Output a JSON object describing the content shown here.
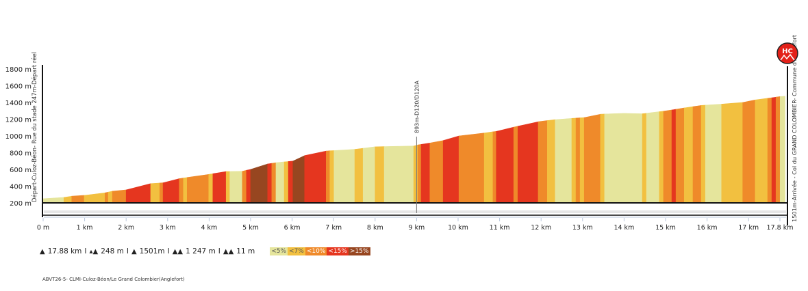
{
  "chart_data": {
    "type": "area",
    "title": "",
    "xlabel": "",
    "ylabel": "",
    "xlim": [
      0,
      17.88
    ],
    "ylim": [
      200,
      1800
    ],
    "y_ticks": [
      "200 m",
      "400 m",
      "600 m",
      "800 m",
      "1000 m",
      "1200 m",
      "1400 m",
      "1600 m",
      "1800 m"
    ],
    "x_ticks": [
      "0 m",
      "1 km",
      "2 km",
      "3 km",
      "4 km",
      "5 km",
      "6 km",
      "7 km",
      "8 km",
      "9 km",
      "10 km",
      "11 km",
      "12 km",
      "13 km",
      "14 km",
      "15 km",
      "16 km",
      "17 km",
      "17.8 km"
    ],
    "grade_classes": [
      {
        "label": "<5%",
        "color": "#e5e59c"
      },
      {
        "label": "<7%",
        "color": "#f2c040"
      },
      {
        "label": "<10%",
        "color": "#ef8a2a"
      },
      {
        "label": "<15%",
        "color": "#e5361f"
      },
      {
        "label": ">15%",
        "color": "#974620"
      }
    ],
    "profile": [
      [
        0,
        250
      ],
      [
        0.5,
        265
      ],
      [
        0.69,
        280
      ],
      [
        0.99,
        290
      ],
      [
        1.49,
        320
      ],
      [
        1.67,
        340
      ],
      [
        2.0,
        355
      ],
      [
        2.59,
        430
      ],
      [
        2.89,
        440
      ],
      [
        3.28,
        490
      ],
      [
        3.99,
        540
      ],
      [
        4.41,
        575
      ],
      [
        4.8,
        578
      ],
      [
        5.0,
        600
      ],
      [
        5.41,
        665
      ],
      [
        5.61,
        680
      ],
      [
        6.02,
        700
      ],
      [
        6.3,
        765
      ],
      [
        6.82,
        820
      ],
      [
        7.51,
        840
      ],
      [
        8.0,
        870
      ],
      [
        8.93,
        880
      ],
      [
        9.03,
        893
      ],
      [
        9.32,
        915
      ],
      [
        9.64,
        945
      ],
      [
        10.02,
        1000
      ],
      [
        10.63,
        1035
      ],
      [
        10.92,
        1055
      ],
      [
        11.34,
        1105
      ],
      [
        11.93,
        1170
      ],
      [
        12.34,
        1195
      ],
      [
        12.74,
        1210
      ],
      [
        13.04,
        1220
      ],
      [
        13.43,
        1260
      ],
      [
        14.0,
        1270
      ],
      [
        14.44,
        1265
      ],
      [
        14.85,
        1290
      ],
      [
        15.15,
        1310
      ],
      [
        15.45,
        1335
      ],
      [
        15.86,
        1365
      ],
      [
        16.35,
        1380
      ],
      [
        16.86,
        1400
      ],
      [
        17.16,
        1430
      ],
      [
        17.46,
        1450
      ],
      [
        17.76,
        1470
      ],
      [
        17.88,
        1475
      ]
    ],
    "segments": [
      [
        0,
        0.5,
        0
      ],
      [
        0.5,
        0.69,
        1
      ],
      [
        0.69,
        0.99,
        2
      ],
      [
        0.99,
        1.49,
        1
      ],
      [
        1.49,
        1.57,
        2
      ],
      [
        1.57,
        1.67,
        1
      ],
      [
        1.67,
        2.0,
        2
      ],
      [
        2.0,
        2.59,
        3
      ],
      [
        2.59,
        2.81,
        1
      ],
      [
        2.81,
        2.89,
        2
      ],
      [
        2.89,
        3.28,
        3
      ],
      [
        3.28,
        3.38,
        2
      ],
      [
        3.38,
        3.47,
        1
      ],
      [
        3.47,
        3.99,
        2
      ],
      [
        3.99,
        4.09,
        1
      ],
      [
        4.09,
        4.41,
        3
      ],
      [
        4.41,
        4.5,
        1
      ],
      [
        4.5,
        4.8,
        0
      ],
      [
        4.8,
        4.9,
        2
      ],
      [
        4.9,
        5.0,
        3
      ],
      [
        5.0,
        5.41,
        4
      ],
      [
        5.41,
        5.51,
        3
      ],
      [
        5.51,
        5.61,
        2
      ],
      [
        5.61,
        5.81,
        0
      ],
      [
        5.81,
        5.91,
        1
      ],
      [
        5.91,
        6.02,
        3
      ],
      [
        6.02,
        6.3,
        4
      ],
      [
        6.3,
        6.82,
        3
      ],
      [
        6.82,
        6.91,
        2
      ],
      [
        6.91,
        7.01,
        1
      ],
      [
        7.01,
        7.51,
        0
      ],
      [
        7.51,
        7.71,
        1
      ],
      [
        7.71,
        8.0,
        0
      ],
      [
        8.0,
        8.22,
        1
      ],
      [
        8.22,
        8.93,
        0
      ],
      [
        8.93,
        9.03,
        1
      ],
      [
        9.03,
        9.11,
        2
      ],
      [
        9.11,
        9.32,
        3
      ],
      [
        9.32,
        9.64,
        2
      ],
      [
        9.64,
        10.02,
        3
      ],
      [
        10.02,
        10.63,
        2
      ],
      [
        10.63,
        10.84,
        1
      ],
      [
        10.84,
        10.92,
        2
      ],
      [
        10.92,
        11.34,
        3
      ],
      [
        11.34,
        11.44,
        2
      ],
      [
        11.44,
        11.93,
        3
      ],
      [
        11.93,
        12.15,
        2
      ],
      [
        12.15,
        12.34,
        1
      ],
      [
        12.34,
        12.74,
        0
      ],
      [
        12.74,
        12.84,
        1
      ],
      [
        12.84,
        12.94,
        2
      ],
      [
        12.94,
        13.04,
        1
      ],
      [
        13.04,
        13.43,
        2
      ],
      [
        13.43,
        13.53,
        1
      ],
      [
        13.53,
        14.44,
        0
      ],
      [
        14.44,
        14.54,
        1
      ],
      [
        14.54,
        14.85,
        0
      ],
      [
        14.85,
        14.95,
        1
      ],
      [
        14.95,
        15.15,
        2
      ],
      [
        15.15,
        15.25,
        3
      ],
      [
        15.25,
        15.45,
        2
      ],
      [
        15.45,
        15.66,
        1
      ],
      [
        15.66,
        15.86,
        2
      ],
      [
        15.86,
        15.96,
        1
      ],
      [
        15.96,
        16.35,
        0
      ],
      [
        16.35,
        16.86,
        1
      ],
      [
        16.86,
        17.16,
        2
      ],
      [
        17.16,
        17.46,
        1
      ],
      [
        17.46,
        17.56,
        2
      ],
      [
        17.56,
        17.66,
        3
      ],
      [
        17.66,
        17.76,
        2
      ],
      [
        17.76,
        17.88,
        0
      ]
    ],
    "annotations": {
      "start": "Départ-Culoz-Béon- Rue du stade   247m-Départ réel",
      "waypoint": {
        "km": 9.0,
        "label": "893m-D120/D120A"
      },
      "finish": "1501m-Arrivée - Col du GRAND COLOMBIER- Commune d'Anglefort"
    },
    "category_badge": "HC"
  },
  "stats": {
    "distance": "17.88 km",
    "start_alt": "248 m",
    "end_alt": "1501m",
    "elev_gain": "1 247 m",
    "elev_loss": "11 m"
  },
  "footer": "ABVT26-5- CLMI-Culoz-Béon/Le Grand Colombier(Anglefort)"
}
